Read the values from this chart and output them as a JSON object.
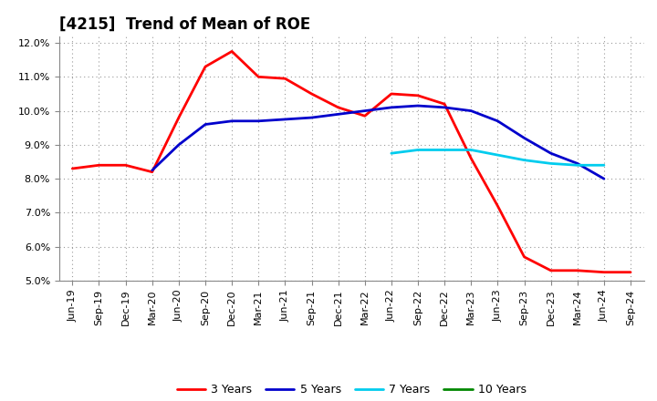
{
  "title": "[4215]  Trend of Mean of ROE",
  "x_labels": [
    "Jun-19",
    "Sep-19",
    "Dec-19",
    "Mar-20",
    "Jun-20",
    "Sep-20",
    "Dec-20",
    "Mar-21",
    "Jun-21",
    "Sep-21",
    "Dec-21",
    "Mar-22",
    "Jun-22",
    "Sep-22",
    "Dec-22",
    "Mar-23",
    "Jun-23",
    "Sep-23",
    "Dec-23",
    "Mar-24",
    "Jun-24",
    "Sep-24"
  ],
  "series": {
    "3 Years": {
      "color": "#FF0000",
      "data": [
        0.083,
        0.084,
        0.084,
        0.082,
        0.098,
        0.113,
        0.1175,
        0.11,
        0.1095,
        0.105,
        0.101,
        0.0985,
        0.105,
        0.1045,
        0.102,
        0.086,
        0.072,
        0.057,
        0.053,
        0.053,
        0.0525,
        0.0525
      ]
    },
    "5 Years": {
      "color": "#0000CC",
      "data": [
        null,
        null,
        null,
        0.0825,
        0.09,
        0.096,
        0.097,
        0.097,
        0.0975,
        0.098,
        0.099,
        0.1,
        0.101,
        0.1015,
        0.101,
        0.1,
        0.097,
        0.092,
        0.0875,
        0.0845,
        0.08,
        null
      ]
    },
    "7 Years": {
      "color": "#00CCEE",
      "data": [
        null,
        null,
        null,
        null,
        null,
        null,
        null,
        null,
        null,
        null,
        null,
        null,
        0.0875,
        0.0885,
        0.0885,
        0.0885,
        0.087,
        0.0855,
        0.0845,
        0.084,
        0.084,
        null
      ]
    },
    "10 Years": {
      "color": "#008800",
      "data": [
        null,
        null,
        null,
        null,
        null,
        null,
        null,
        null,
        null,
        null,
        null,
        null,
        null,
        null,
        null,
        null,
        null,
        null,
        null,
        null,
        null,
        null
      ]
    }
  },
  "ylim": [
    0.05,
    0.122
  ],
  "yticks": [
    0.05,
    0.06,
    0.07,
    0.08,
    0.09,
    0.1,
    0.11,
    0.12
  ],
  "background_color": "#FFFFFF",
  "grid_color": "#AAAAAA",
  "title_fontsize": 12,
  "tick_fontsize": 8
}
